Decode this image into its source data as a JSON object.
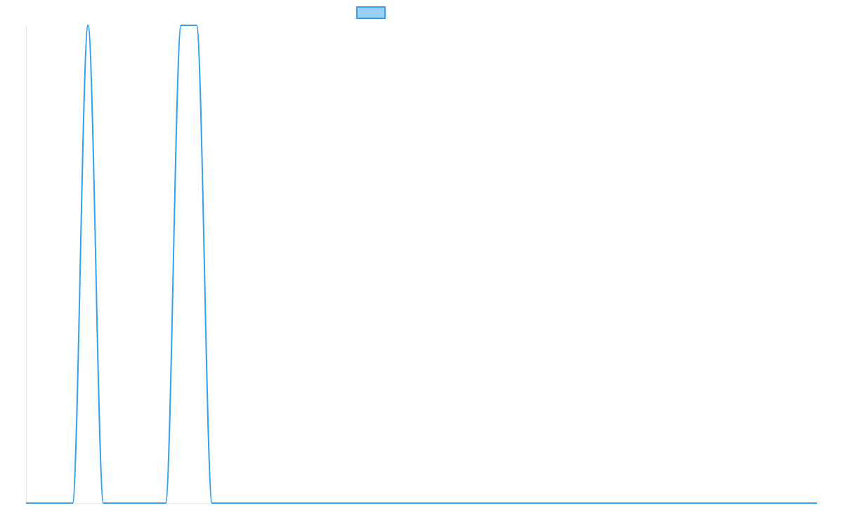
{
  "chart_data": {
    "type": "line",
    "title": "",
    "xlabel": "",
    "ylabel": "",
    "grid": false,
    "legend": {
      "position": "top-center",
      "entries": [
        {
          "label": "",
          "fill": "#9ad0f5",
          "stroke": "#36a2eb"
        }
      ]
    },
    "xlim": [
      0,
      51
    ],
    "ylim": [
      0,
      1
    ],
    "x": [
      0,
      1,
      2,
      3,
      4,
      5,
      6,
      7,
      8,
      9,
      10,
      11,
      12,
      13,
      14,
      15,
      16,
      17,
      18,
      19,
      20,
      21,
      22,
      23,
      24,
      25,
      26,
      27,
      28,
      29,
      30,
      31,
      32,
      33,
      34,
      35,
      36,
      37,
      38,
      39,
      40,
      41,
      42,
      43,
      44,
      45,
      46,
      47,
      48,
      49,
      50,
      51
    ],
    "series": [
      {
        "color": "#36a2eb",
        "values": [
          0,
          0,
          0,
          0,
          1,
          0,
          0,
          0,
          0,
          0,
          1,
          1,
          0,
          0,
          0,
          0,
          0,
          0,
          0,
          0,
          0,
          0,
          0,
          0,
          0,
          0,
          0,
          0,
          0,
          0,
          0,
          0,
          0,
          0,
          0,
          0,
          0,
          0,
          0,
          0,
          0,
          0,
          0,
          0,
          0,
          0,
          0,
          0,
          0,
          0,
          0,
          0
        ]
      }
    ]
  }
}
